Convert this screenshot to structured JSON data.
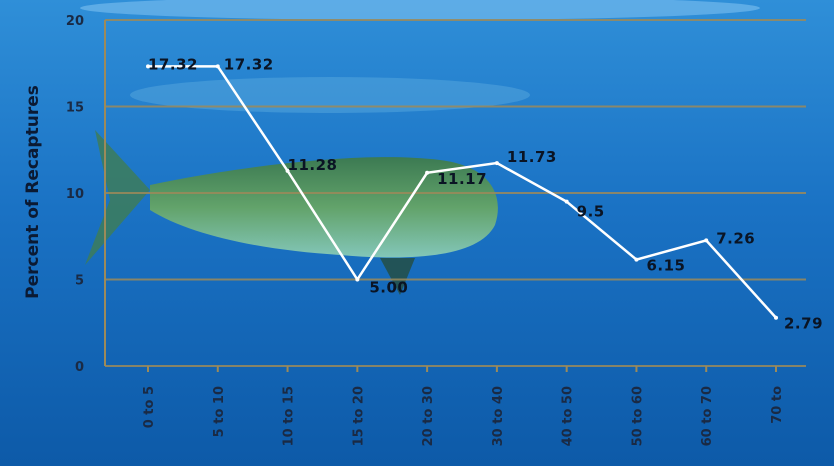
{
  "chart_data": {
    "type": "line",
    "title": "",
    "xlabel": "",
    "ylabel": "Percent of Recaptures",
    "categories": [
      "0 to 5",
      "5 to 10",
      "10 to 15",
      "15 to 20",
      "20 to 30",
      "30 to 40",
      "40 to 50",
      "50 to 60",
      "60 to 70",
      "70+ to"
    ],
    "category_labels_visible": [
      "0 to 5",
      "5 to 10",
      "10 to 15",
      "15 to 20",
      "20 to 30",
      "30 to 40",
      "40 to 50",
      "50 to 60",
      "60 to 70",
      "70 to"
    ],
    "values": [
      17.32,
      17.32,
      11.28,
      5.0,
      11.17,
      11.73,
      9.5,
      6.15,
      7.26,
      2.79
    ],
    "value_labels": [
      "17.32",
      "17.32",
      "11.28",
      "5.00",
      "11.17",
      "11.73",
      "9.5",
      "6.15",
      "7.26",
      "2.79"
    ],
    "ylim": [
      0,
      20
    ],
    "yticks": [
      0,
      5,
      10,
      15,
      20
    ],
    "grid": true,
    "line_color": "#ffffff",
    "grid_color": "#9c8a5a"
  }
}
